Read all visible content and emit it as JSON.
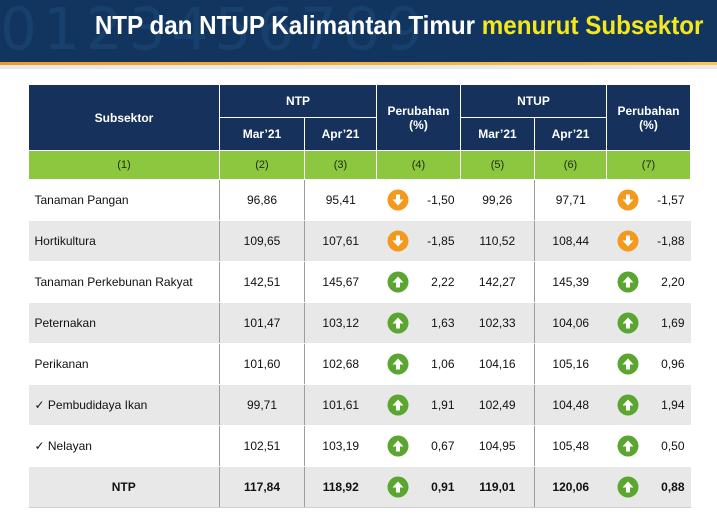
{
  "header": {
    "title_main": "NTP dan NTUP Kalimantan Timur",
    "title_highlight": "menurut Subsektor",
    "decoration": "0123456789"
  },
  "table": {
    "col_subsektor": "Subsektor",
    "group_ntp": "NTP",
    "group_ntup": "NTUP",
    "col_perubahan": "Perubahan (%)",
    "col_mar": "Mar’21",
    "col_apr": "Apr’21",
    "col_numbers": [
      "(1)",
      "(2)",
      "(3)",
      "(4)",
      "(5)",
      "(6)",
      "(7)"
    ],
    "rows": [
      {
        "label": "Tanaman Pangan",
        "ntp_mar": "96,86",
        "ntp_apr": "95,41",
        "ntp_chg": "-1,50",
        "ntp_dir": "down",
        "ntup_mar": "99,26",
        "ntup_apr": "97,71",
        "ntup_chg": "-1,57",
        "ntup_dir": "down"
      },
      {
        "label": "Hortikultura",
        "ntp_mar": "109,65",
        "ntp_apr": "107,61",
        "ntp_chg": "-1,85",
        "ntp_dir": "down",
        "ntup_mar": "110,52",
        "ntup_apr": "108,44",
        "ntup_chg": "-1,88",
        "ntup_dir": "down"
      },
      {
        "label": "Tanaman Perkebunan Rakyat",
        "ntp_mar": "142,51",
        "ntp_apr": "145,67",
        "ntp_chg": "2,22",
        "ntp_dir": "up",
        "ntup_mar": "142,27",
        "ntup_apr": "145,39",
        "ntup_chg": "2,20",
        "ntup_dir": "up"
      },
      {
        "label": "Peternakan",
        "ntp_mar": "101,47",
        "ntp_apr": "103,12",
        "ntp_chg": "1,63",
        "ntp_dir": "up",
        "ntup_mar": "102,33",
        "ntup_apr": "104,06",
        "ntup_chg": "1,69",
        "ntup_dir": "up"
      },
      {
        "label": "Perikanan",
        "ntp_mar": "101,60",
        "ntp_apr": "102,68",
        "ntp_chg": "1,06",
        "ntp_dir": "up",
        "ntup_mar": "104,16",
        "ntup_apr": "105,16",
        "ntup_chg": "0,96",
        "ntup_dir": "up"
      },
      {
        "label": "✓ Pembudidaya Ikan",
        "ntp_mar": "99,71",
        "ntp_apr": "101,61",
        "ntp_chg": "1,91",
        "ntp_dir": "up",
        "ntup_mar": "102,49",
        "ntup_apr": "104,48",
        "ntup_chg": "1,94",
        "ntup_dir": "up"
      },
      {
        "label": "✓ Nelayan",
        "ntp_mar": "102,51",
        "ntp_apr": "103,19",
        "ntp_chg": "0,67",
        "ntp_dir": "up",
        "ntup_mar": "104,95",
        "ntup_apr": "105,48",
        "ntup_chg": "0,50",
        "ntup_dir": "up"
      }
    ],
    "total": {
      "label": "NTP",
      "ntp_mar": "117,84",
      "ntp_apr": "118,92",
      "ntp_chg": "0,91",
      "ntp_dir": "up",
      "ntup_mar": "119,01",
      "ntup_apr": "120,06",
      "ntup_chg": "0,88",
      "ntup_dir": "up"
    }
  },
  "colors": {
    "header_bg": "#16325c",
    "subheader_bg": "#8dc63f",
    "up_icon": "#5aa630",
    "down_icon": "#f39a1e",
    "title_highlight": "#f5e71b"
  },
  "icons": {
    "up": "arrow-up-icon",
    "down": "arrow-down-icon"
  }
}
